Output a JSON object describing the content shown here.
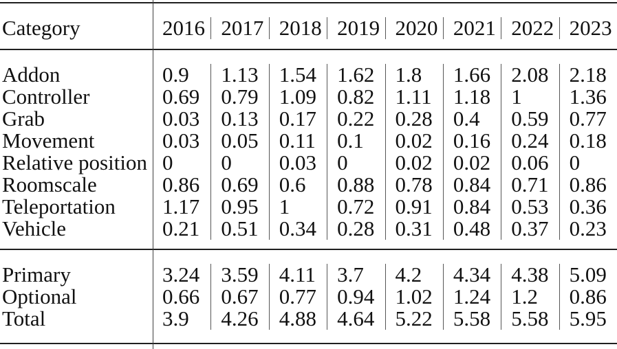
{
  "table": {
    "header": {
      "category_label": "Category",
      "years": [
        "2016",
        "2017",
        "2018",
        "2019",
        "2020",
        "2021",
        "2022",
        "2023"
      ]
    },
    "rows": [
      {
        "label": "Addon",
        "values": [
          "0.9",
          "1.13",
          "1.54",
          "1.62",
          "1.8",
          "1.66",
          "2.08",
          "2.18"
        ]
      },
      {
        "label": "Controller",
        "values": [
          "0.69",
          "0.79",
          "1.09",
          "0.82",
          "1.11",
          "1.18",
          "1",
          "1.36"
        ]
      },
      {
        "label": "Grab",
        "values": [
          "0.03",
          "0.13",
          "0.17",
          "0.22",
          "0.28",
          "0.4",
          "0.59",
          "0.77"
        ]
      },
      {
        "label": "Movement",
        "values": [
          "0.03",
          "0.05",
          "0.11",
          "0.1",
          "0.02",
          "0.16",
          "0.24",
          "0.18"
        ]
      },
      {
        "label": "Relative position",
        "values": [
          "0",
          "0",
          "0.03",
          "0",
          "0.02",
          "0.02",
          "0.06",
          "0"
        ]
      },
      {
        "label": "Roomscale",
        "values": [
          "0.86",
          "0.69",
          "0.6",
          "0.88",
          "0.78",
          "0.84",
          "0.71",
          "0.86"
        ]
      },
      {
        "label": "Teleportation",
        "values": [
          "1.17",
          "0.95",
          "1",
          "0.72",
          "0.91",
          "0.84",
          "0.53",
          "0.36"
        ]
      },
      {
        "label": "Vehicle",
        "values": [
          "0.21",
          "0.51",
          "0.34",
          "0.28",
          "0.31",
          "0.48",
          "0.37",
          "0.23"
        ]
      }
    ],
    "summary": [
      {
        "label": "Primary",
        "values": [
          "3.24",
          "3.59",
          "4.11",
          "3.7",
          "4.2",
          "4.34",
          "4.38",
          "5.09"
        ]
      },
      {
        "label": "Optional",
        "values": [
          "0.66",
          "0.67",
          "0.77",
          "0.94",
          "1.02",
          "1.24",
          "1.2",
          "0.86"
        ]
      },
      {
        "label": "Total",
        "values": [
          "3.9",
          "4.26",
          "4.88",
          "4.64",
          "5.22",
          "5.58",
          "5.58",
          "5.95"
        ]
      }
    ],
    "colors": {
      "background": "#ffffff",
      "text": "#111111",
      "horizontal_rule": "#1f1f1f",
      "column_divider": "#3d3d3d",
      "year_separator": "#555555"
    }
  }
}
